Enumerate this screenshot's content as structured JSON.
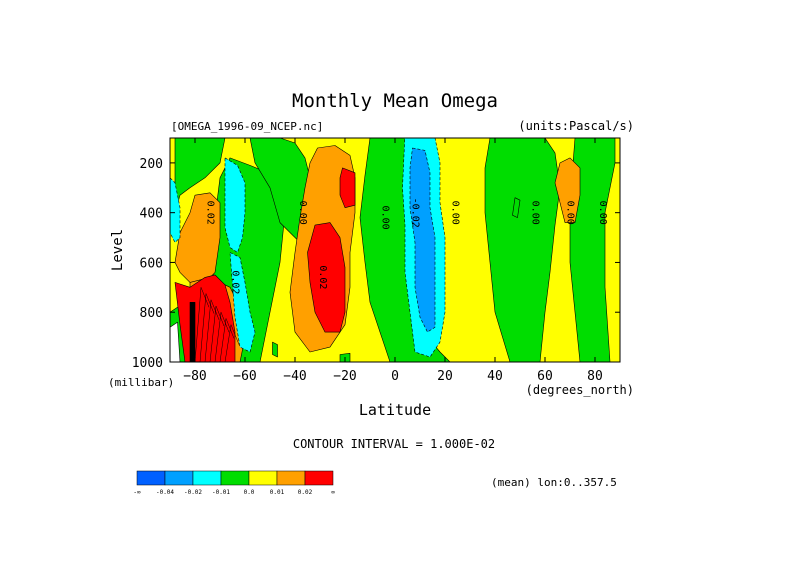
{
  "chart_data": {
    "type": "filled-contour",
    "title": "Monthly Mean Omega",
    "file_label": "[OMEGA_1996-09_NCEP.nc]",
    "units_label": "(units:Pascal/s)",
    "xlabel": "Latitude",
    "xunits": "(degrees_north)",
    "ylabel": "Level",
    "yunits": "(millibar)",
    "xlim": [
      -90,
      90
    ],
    "ylim": [
      1000,
      100
    ],
    "xticks": [
      -80,
      -60,
      -40,
      -20,
      0,
      20,
      40,
      60,
      80
    ],
    "yticks": [
      200,
      400,
      600,
      800,
      1000
    ],
    "contour_interval_text": "CONTOUR INTERVAL = 1.000E-02",
    "mean_text": "(mean) lon:0..357.5",
    "contour_labels": [
      {
        "text": "0.02",
        "lat": -75,
        "lev": 400
      },
      {
        "text": "0.02",
        "lat": -65,
        "lev": 680
      },
      {
        "text": "0.00",
        "lat": -38,
        "lev": 400
      },
      {
        "text": "0.02",
        "lat": -30,
        "lev": 660
      },
      {
        "text": "0.00",
        "lat": -5,
        "lev": 420
      },
      {
        "text": "-0.02",
        "lat": 7,
        "lev": 400
      },
      {
        "text": "0.00",
        "lat": 23,
        "lev": 400
      },
      {
        "text": "0.00",
        "lat": 55,
        "lev": 400
      },
      {
        "text": "0.00",
        "lat": 69,
        "lev": 400
      },
      {
        "text": "0.00",
        "lat": 82,
        "lev": 400
      }
    ],
    "colorbar": {
      "colors": [
        "#0060ff",
        "#00a0ff",
        "#00ffff",
        "#00dd00",
        "#ffff00",
        "#ffa000",
        "#ff0000"
      ],
      "labels": [
        "-∞",
        "-0.04",
        "-0.02",
        "-0.01",
        "0.0",
        "0.01",
        "0.02",
        "∞"
      ]
    },
    "regions": [
      {
        "color": "#ffff00",
        "pts": [
          [
            -90,
            100
          ],
          [
            90,
            100
          ],
          [
            90,
            1000
          ],
          [
            -90,
            1000
          ]
        ]
      },
      {
        "color": "#00dd00",
        "pts": [
          [
            -88,
            100
          ],
          [
            -68,
            100
          ],
          [
            -70,
            200
          ],
          [
            -76,
            260
          ],
          [
            -82,
            300
          ],
          [
            -86,
            330
          ],
          [
            -88,
            400
          ]
        ]
      },
      {
        "color": "#00dd00",
        "pts": [
          [
            -66,
            180
          ],
          [
            -58,
            210
          ],
          [
            -46,
            260
          ],
          [
            -44,
            400
          ],
          [
            -46,
            600
          ],
          [
            -50,
            800
          ],
          [
            -54,
            1000
          ],
          [
            -66,
            1000
          ],
          [
            -70,
            800
          ],
          [
            -73,
            620
          ],
          [
            -72,
            420
          ],
          [
            -70,
            260
          ]
        ]
      },
      {
        "color": "#00dd00",
        "pts": [
          [
            -58,
            100
          ],
          [
            -46,
            100
          ],
          [
            -40,
            120
          ],
          [
            -36,
            180
          ],
          [
            -34,
            260
          ],
          [
            -36,
            420
          ],
          [
            -38,
            520
          ],
          [
            -46,
            440
          ],
          [
            -50,
            300
          ],
          [
            -56,
            200
          ]
        ]
      },
      {
        "color": "#00dd00",
        "pts": [
          [
            -10,
            100
          ],
          [
            8,
            100
          ],
          [
            8,
            200
          ],
          [
            6,
            400
          ],
          [
            7,
            600
          ],
          [
            8,
            750
          ],
          [
            13,
            900
          ],
          [
            18,
            960
          ],
          [
            22,
            1000
          ],
          [
            -2,
            1000
          ],
          [
            -6,
            880
          ],
          [
            -10,
            760
          ],
          [
            -12,
            600
          ],
          [
            -14,
            420
          ],
          [
            -12,
            250
          ]
        ]
      },
      {
        "color": "#00dd00",
        "pts": [
          [
            38,
            100
          ],
          [
            60,
            100
          ],
          [
            64,
            160
          ],
          [
            66,
            300
          ],
          [
            64,
            450
          ],
          [
            62,
            640
          ],
          [
            60,
            800
          ],
          [
            58,
            1000
          ],
          [
            46,
            1000
          ],
          [
            40,
            800
          ],
          [
            38,
            600
          ],
          [
            36,
            400
          ],
          [
            36,
            220
          ]
        ]
      },
      {
        "color": "#00dd00",
        "pts": [
          [
            72,
            100
          ],
          [
            88,
            100
          ],
          [
            88,
            200
          ],
          [
            84,
            400
          ],
          [
            84,
            700
          ],
          [
            86,
            1000
          ],
          [
            74,
            1000
          ],
          [
            72,
            800
          ],
          [
            70,
            600
          ],
          [
            70,
            360
          ]
        ]
      },
      {
        "color": "#00dd00",
        "pts": [
          [
            -90,
            800
          ],
          [
            -84,
            760
          ],
          [
            -82,
            900
          ],
          [
            -84,
            1000
          ],
          [
            -90,
            1000
          ]
        ]
      },
      {
        "color": "#ffa000",
        "pts": [
          [
            -80,
            330
          ],
          [
            -74,
            320
          ],
          [
            -70,
            360
          ],
          [
            -70,
            500
          ],
          [
            -72,
            640
          ],
          [
            -76,
            680
          ],
          [
            -82,
            680
          ],
          [
            -86,
            640
          ],
          [
            -88,
            600
          ],
          [
            -86,
            480
          ],
          [
            -82,
            400
          ]
        ]
      },
      {
        "color": "#ffa000",
        "pts": [
          [
            -31,
            140
          ],
          [
            -24,
            130
          ],
          [
            -18,
            170
          ],
          [
            -16,
            260
          ],
          [
            -16,
            400
          ],
          [
            -18,
            560
          ],
          [
            -18,
            700
          ],
          [
            -20,
            850
          ],
          [
            -26,
            940
          ],
          [
            -34,
            960
          ],
          [
            -40,
            880
          ],
          [
            -42,
            720
          ],
          [
            -40,
            560
          ],
          [
            -38,
            420
          ],
          [
            -36,
            300
          ],
          [
            -34,
            200
          ]
        ]
      },
      {
        "color": "#ffa000",
        "pts": [
          [
            -82,
            680
          ],
          [
            -74,
            660
          ],
          [
            -66,
            700
          ],
          [
            -62,
            780
          ],
          [
            -60,
            900
          ],
          [
            -62,
            1000
          ],
          [
            -78,
            1000
          ],
          [
            -82,
            900
          ]
        ]
      },
      {
        "color": "#ffa000",
        "pts": [
          [
            66,
            200
          ],
          [
            70,
            180
          ],
          [
            74,
            220
          ],
          [
            74,
            330
          ],
          [
            72,
            440
          ],
          [
            68,
            440
          ],
          [
            66,
            360
          ],
          [
            64,
            280
          ]
        ]
      },
      {
        "color": "#ff0000",
        "pts": [
          [
            -21,
            220
          ],
          [
            -16,
            240
          ],
          [
            -16,
            370
          ],
          [
            -20,
            380
          ],
          [
            -22,
            330
          ],
          [
            -22,
            260
          ]
        ]
      },
      {
        "color": "#ff0000",
        "pts": [
          [
            -32,
            450
          ],
          [
            -26,
            440
          ],
          [
            -22,
            500
          ],
          [
            -20,
            620
          ],
          [
            -20,
            800
          ],
          [
            -22,
            880
          ],
          [
            -28,
            880
          ],
          [
            -32,
            800
          ],
          [
            -34,
            680
          ],
          [
            -35,
            560
          ]
        ]
      },
      {
        "color": "#ff0000",
        "pts": [
          [
            -88,
            680
          ],
          [
            -82,
            700
          ],
          [
            -76,
            660
          ],
          [
            -72,
            650
          ],
          [
            -68,
            690
          ],
          [
            -66,
            760
          ],
          [
            -64,
            880
          ],
          [
            -64,
            1000
          ],
          [
            -84,
            1000
          ],
          [
            -86,
            850
          ]
        ]
      },
      {
        "color": "#00ffff",
        "pts": [
          [
            -68,
            180
          ],
          [
            -63,
            210
          ],
          [
            -60,
            280
          ],
          [
            -60,
            400
          ],
          [
            -61,
            500
          ],
          [
            -63,
            560
          ],
          [
            -66,
            540
          ],
          [
            -68,
            460
          ],
          [
            -68,
            320
          ]
        ]
      },
      {
        "color": "#00ffff",
        "pts": [
          [
            -66,
            560
          ],
          [
            -62,
            580
          ],
          [
            -60,
            680
          ],
          [
            -58,
            800
          ],
          [
            -56,
            880
          ],
          [
            -58,
            960
          ],
          [
            -62,
            940
          ],
          [
            -64,
            820
          ]
        ]
      },
      {
        "color": "#00ffff",
        "pts": [
          [
            4,
            80
          ],
          [
            10,
            90
          ],
          [
            16,
            100
          ],
          [
            18,
            200
          ],
          [
            18,
            360
          ],
          [
            20,
            500
          ],
          [
            20,
            640
          ],
          [
            20,
            800
          ],
          [
            18,
            920
          ],
          [
            14,
            980
          ],
          [
            8,
            960
          ],
          [
            6,
            800
          ],
          [
            4,
            640
          ],
          [
            4,
            450
          ],
          [
            3,
            300
          ]
        ]
      },
      {
        "color": "#00ffff",
        "pts": [
          [
            -90,
            260
          ],
          [
            -88,
            280
          ],
          [
            -86,
            380
          ],
          [
            -86,
            500
          ],
          [
            -88,
            520
          ],
          [
            -90,
            480
          ]
        ]
      },
      {
        "color": "#00a0ff",
        "pts": [
          [
            7,
            140
          ],
          [
            12,
            150
          ],
          [
            14,
            240
          ],
          [
            14,
            380
          ],
          [
            16,
            500
          ],
          [
            16,
            700
          ],
          [
            16,
            860
          ],
          [
            13,
            880
          ],
          [
            10,
            820
          ],
          [
            8,
            700
          ],
          [
            8,
            520
          ],
          [
            6,
            380
          ],
          [
            6,
            220
          ]
        ]
      },
      {
        "color": "#00dd00",
        "pts": [
          [
            48,
            340
          ],
          [
            50,
            350
          ],
          [
            49,
            420
          ],
          [
            47,
            410
          ]
        ]
      },
      {
        "color": "#00dd00",
        "pts": [
          [
            -49,
            920
          ],
          [
            -47,
            930
          ],
          [
            -47,
            980
          ],
          [
            -49,
            970
          ]
        ]
      },
      {
        "color": "#00dd00",
        "pts": [
          [
            -22,
            970
          ],
          [
            -18,
            965
          ],
          [
            -18,
            1000
          ],
          [
            -22,
            1000
          ]
        ]
      },
      {
        "color": "#00dd00",
        "pts": [
          [
            -10,
            95
          ],
          [
            -4,
            97
          ],
          [
            -4,
            100
          ],
          [
            -10,
            100
          ]
        ]
      },
      {
        "color": "#000000",
        "pts": [
          [
            -82,
            760
          ],
          [
            -80,
            760
          ],
          [
            -80,
            1000
          ],
          [
            -82,
            1000
          ]
        ]
      },
      {
        "color": "#ffffff",
        "pts": [
          [
            -90,
            860
          ],
          [
            -87,
            840
          ],
          [
            -86,
            1000
          ],
          [
            -90,
            1000
          ]
        ]
      }
    ]
  }
}
